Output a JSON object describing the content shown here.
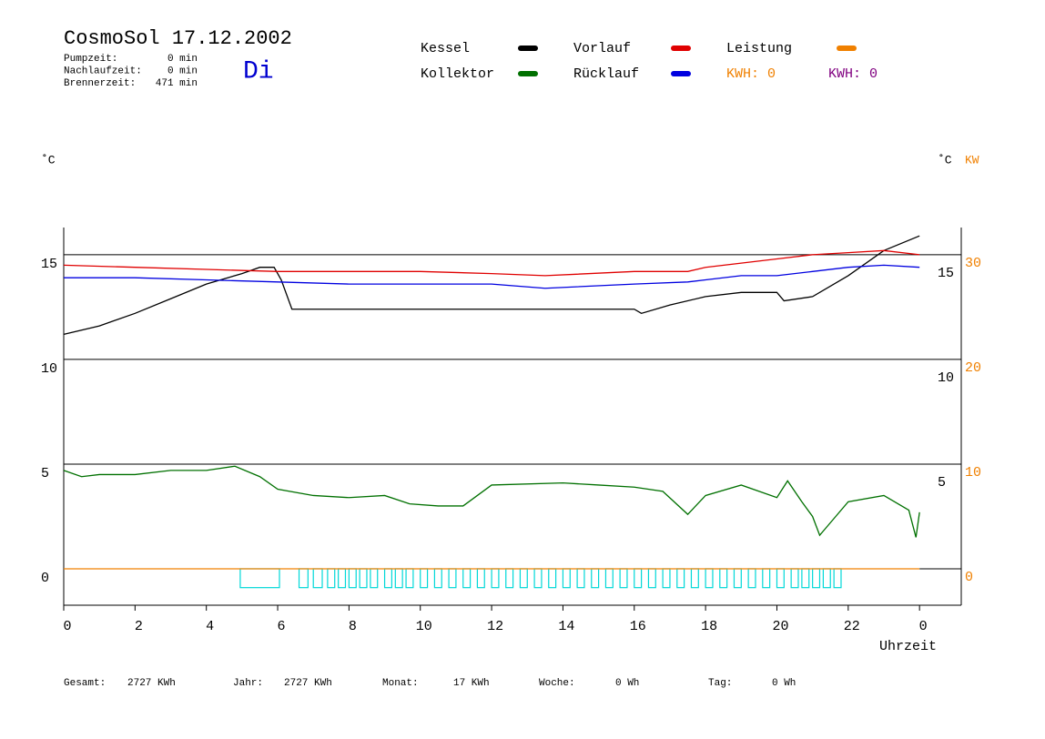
{
  "chart_data": {
    "type": "line",
    "title": "CosmoSol 17.12.2002",
    "weekday": "Di",
    "info": [
      {
        "label": "Pumpzeit:",
        "value": "0 min"
      },
      {
        "label": "Nachlaufzeit:",
        "value": "0 min"
      },
      {
        "label": "Brennerzeit:",
        "value": "471 min"
      }
    ],
    "y_unit": "˚C",
    "y2_units": [
      "˚C",
      "KW"
    ],
    "x_label": "Uhrzeit",
    "xlim": [
      0,
      25.17
    ],
    "xticks": [
      0,
      2,
      4,
      6,
      8,
      10,
      12,
      14,
      16,
      18,
      20,
      22,
      {
        "value": 24,
        "label": "0"
      }
    ],
    "ylim": [
      -1.74,
      16.3
    ],
    "yticks": [
      0,
      5,
      10,
      15
    ],
    "yticks_right": [
      5,
      10,
      15
    ],
    "y2lim": [
      -3.48,
      32.6
    ],
    "y2ticks": [
      0,
      10,
      20,
      30
    ],
    "grid": true,
    "series": [
      {
        "name": "Kessel",
        "color": "#000000",
        "x": [
          0,
          1,
          2,
          3,
          4,
          5,
          5.5,
          5.9,
          6.1,
          6.4,
          8,
          12,
          16,
          16.2,
          17,
          18,
          19,
          20,
          20.2,
          21,
          22,
          23,
          24
        ],
        "values": [
          11.2,
          11.6,
          12.2,
          12.9,
          13.6,
          14.1,
          14.4,
          14.4,
          13.8,
          12.4,
          12.4,
          12.4,
          12.4,
          12.2,
          12.6,
          13.0,
          13.2,
          13.2,
          12.8,
          13.0,
          14.0,
          15.2,
          15.9
        ]
      },
      {
        "name": "Vorlauf",
        "color": "#e00000",
        "x": [
          0,
          2,
          4,
          6,
          8,
          10,
          12,
          13.5,
          16,
          17.5,
          18,
          19,
          20,
          21,
          22,
          23,
          24
        ],
        "values": [
          14.5,
          14.4,
          14.3,
          14.2,
          14.2,
          14.2,
          14.1,
          14.0,
          14.2,
          14.2,
          14.4,
          14.6,
          14.8,
          15.0,
          15.1,
          15.2,
          15.0
        ]
      },
      {
        "name": "Leistung",
        "color": "#f08000",
        "axis": "y2",
        "x": [
          0,
          24
        ],
        "values": [
          0,
          0
        ]
      },
      {
        "name": "Kollektor",
        "color": "#007000",
        "x": [
          0,
          0.5,
          1,
          2,
          3,
          4,
          4.8,
          5.5,
          6,
          7,
          8,
          9,
          9.7,
          10.5,
          11.2,
          12,
          14,
          15,
          16,
          16.8,
          17.5,
          18,
          19,
          20,
          20.3,
          20.7,
          21,
          21.2,
          21.6,
          22,
          23,
          23.7,
          23.9,
          24
        ],
        "values": [
          4.7,
          4.4,
          4.5,
          4.5,
          4.7,
          4.7,
          4.9,
          4.4,
          3.8,
          3.5,
          3.4,
          3.5,
          3.1,
          3.0,
          3.0,
          4.0,
          4.1,
          4.0,
          3.9,
          3.7,
          2.6,
          3.5,
          4.0,
          3.4,
          4.2,
          3.2,
          2.5,
          1.6,
          2.4,
          3.2,
          3.5,
          2.8,
          1.5,
          2.7
        ]
      },
      {
        "name": "Rücklauf",
        "color": "#0000e0",
        "x": [
          0,
          2,
          4,
          6,
          8,
          10,
          12,
          13.5,
          16,
          17.5,
          18,
          19,
          20,
          21,
          22,
          23,
          24
        ],
        "values": [
          13.9,
          13.9,
          13.8,
          13.7,
          13.6,
          13.6,
          13.6,
          13.4,
          13.6,
          13.7,
          13.8,
          14.0,
          14.0,
          14.2,
          14.4,
          14.5,
          14.4
        ]
      }
    ],
    "kwh_labels": [
      {
        "text": "KWH: 0",
        "color": "#f08000"
      },
      {
        "text": "KWH: 0",
        "color": "#800080"
      }
    ],
    "pump_color": "#00d8d8",
    "pump_level": -0.9,
    "pump_intervals": [
      [
        4.95,
        6.05
      ],
      [
        6.6,
        6.85
      ],
      [
        7.0,
        7.25
      ],
      [
        7.4,
        7.6
      ],
      [
        7.7,
        7.9
      ],
      [
        8.0,
        8.2
      ],
      [
        8.3,
        8.5
      ],
      [
        8.6,
        8.8
      ],
      [
        9.0,
        9.2
      ],
      [
        9.3,
        9.5
      ],
      [
        9.6,
        9.8
      ],
      [
        10.0,
        10.2
      ],
      [
        10.4,
        10.6
      ],
      [
        10.8,
        11.0
      ],
      [
        11.2,
        11.4
      ],
      [
        11.6,
        11.8
      ],
      [
        12.0,
        12.2
      ],
      [
        12.4,
        12.6
      ],
      [
        12.8,
        13.0
      ],
      [
        13.2,
        13.4
      ],
      [
        13.6,
        13.8
      ],
      [
        14.0,
        14.2
      ],
      [
        14.4,
        14.6
      ],
      [
        14.8,
        15.0
      ],
      [
        15.2,
        15.4
      ],
      [
        15.6,
        15.8
      ],
      [
        16.0,
        16.2
      ],
      [
        16.4,
        16.6
      ],
      [
        16.8,
        17.0
      ],
      [
        17.2,
        17.4
      ],
      [
        17.6,
        17.8
      ],
      [
        18.0,
        18.2
      ],
      [
        18.4,
        18.6
      ],
      [
        18.8,
        19.0
      ],
      [
        19.2,
        19.4
      ],
      [
        19.6,
        19.8
      ],
      [
        20.0,
        20.2
      ],
      [
        20.4,
        20.6
      ],
      [
        20.7,
        20.9
      ],
      [
        21.0,
        21.2
      ],
      [
        21.3,
        21.5
      ],
      [
        21.6,
        21.8
      ]
    ],
    "footer": [
      {
        "label": "Gesamt:",
        "value": "2727 KWh"
      },
      {
        "label": "Jahr:",
        "value": "2727 KWh"
      },
      {
        "label": "Monat:",
        "value": "17 KWh"
      },
      {
        "label": "Woche:",
        "value": "0 Wh"
      },
      {
        "label": "Tag:",
        "value": "0 Wh"
      }
    ]
  }
}
